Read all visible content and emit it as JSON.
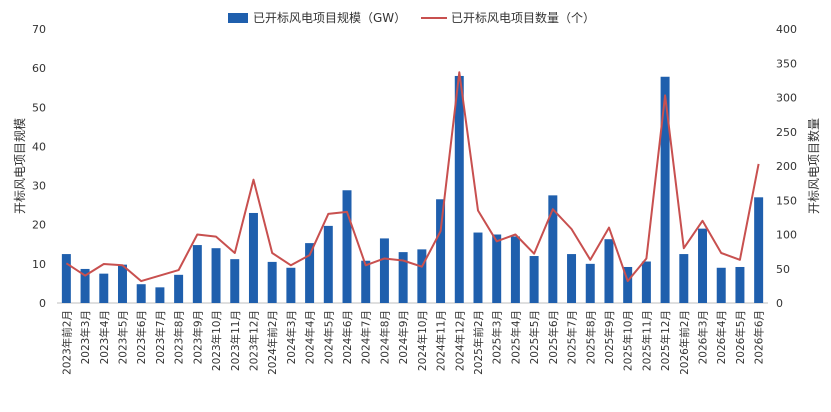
{
  "chart_data": {
    "type": "bar",
    "categories": [
      "2023年前2月",
      "2023年3月",
      "2023年4月",
      "2023年5月",
      "2023年6月",
      "2023年7月",
      "2023年8月",
      "2023年9月",
      "2023年10月",
      "2023年11月",
      "2023年12月",
      "2024年前2月",
      "2024年3月",
      "2024年4月",
      "2024年5月",
      "2024年6月",
      "2024年7月",
      "2024年8月",
      "2024年9月",
      "2024年10月",
      "2024年11月",
      "2024年12月",
      "2025年前2月",
      "2025年3月",
      "2025年4月",
      "2025年5月",
      "2025年6月",
      "2025年7月",
      "2025年8月",
      "2025年9月",
      "2025年10月",
      "2025年11月",
      "2025年12月",
      "2026年前2月",
      "2026年3月",
      "2026年4月",
      "2026年5月",
      "2026年6月"
    ],
    "series": [
      {
        "name": "已开标风电项目规模（GW）",
        "type": "bar",
        "axis": "left",
        "color": "#1f5fad",
        "values": [
          12.5,
          8.7,
          7.5,
          9.8,
          4.8,
          4.0,
          7.2,
          14.8,
          14.0,
          11.2,
          23.0,
          10.5,
          9.0,
          15.3,
          19.7,
          28.8,
          10.8,
          16.5,
          13.0,
          13.7,
          26.5,
          58.0,
          18.0,
          17.5,
          17.0,
          12.0,
          27.5,
          12.5,
          10.0,
          16.3,
          9.2,
          10.6,
          57.8,
          12.5,
          19.0,
          9.0,
          9.2,
          27.0
        ]
      },
      {
        "name": "已开标风电项目数量（个）",
        "type": "line",
        "axis": "right",
        "color": "#c8504f",
        "values": [
          58,
          40,
          57,
          55,
          32,
          40,
          48,
          100,
          97,
          73,
          180,
          73,
          55,
          70,
          130,
          133,
          55,
          65,
          62,
          53,
          105,
          337,
          135,
          90,
          100,
          72,
          137,
          108,
          63,
          110,
          32,
          65,
          303,
          80,
          120,
          73,
          63,
          203
        ]
      }
    ],
    "y_left": {
      "label": "开标风电项目规模",
      "range": [
        0,
        70
      ],
      "ticks": [
        0,
        10,
        20,
        30,
        40,
        50,
        60,
        70
      ]
    },
    "y_right": {
      "label": "开标风电项目数量",
      "range": [
        0,
        400
      ],
      "ticks": [
        0,
        50,
        100,
        150,
        200,
        250,
        300,
        350,
        400
      ]
    },
    "legend": "top-center",
    "grid": false
  }
}
